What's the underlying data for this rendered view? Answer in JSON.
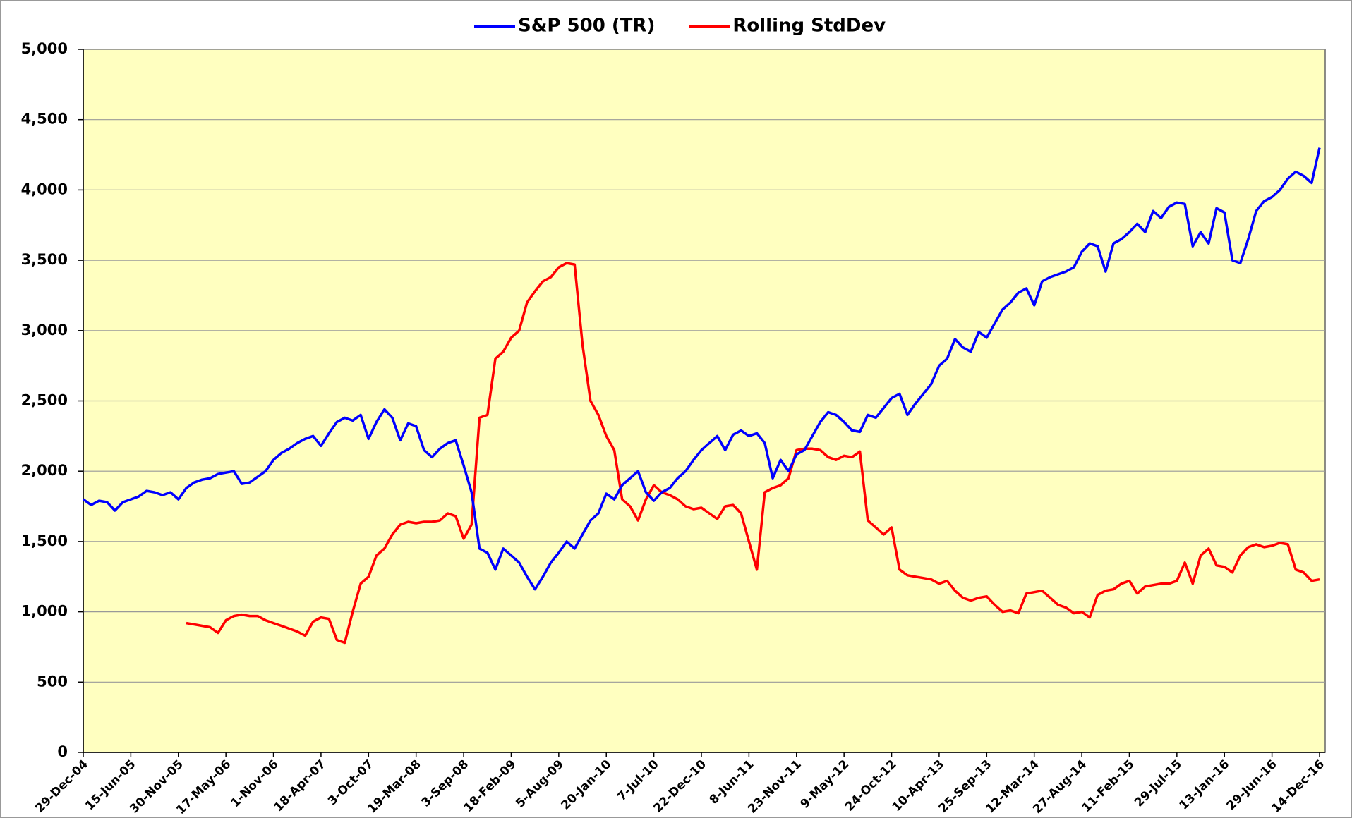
{
  "chart_data": {
    "type": "line",
    "legend": "top",
    "grid": true,
    "background": "#ffffc0",
    "categories": [
      "29-Dec-04",
      null,
      null,
      null,
      null,
      null,
      "15-Jun-05",
      null,
      null,
      null,
      null,
      null,
      "30-Nov-05",
      null,
      null,
      null,
      null,
      null,
      "17-May-06",
      null,
      null,
      null,
      null,
      null,
      "1-Nov-06",
      null,
      null,
      null,
      null,
      null,
      "18-Apr-07",
      null,
      null,
      null,
      null,
      null,
      "3-Oct-07",
      null,
      null,
      null,
      null,
      null,
      "19-Mar-08",
      null,
      null,
      null,
      null,
      null,
      "3-Sep-08",
      null,
      null,
      null,
      null,
      null,
      "18-Feb-09",
      null,
      null,
      null,
      null,
      null,
      "5-Aug-09",
      null,
      null,
      null,
      null,
      null,
      "20-Jan-10",
      null,
      null,
      null,
      null,
      null,
      "7-Jul-10",
      null,
      null,
      null,
      null,
      null,
      "22-Dec-10",
      null,
      null,
      null,
      null,
      null,
      "8-Jun-11",
      null,
      null,
      null,
      null,
      null,
      "23-Nov-11",
      null,
      null,
      null,
      null,
      null,
      "9-May-12",
      null,
      null,
      null,
      null,
      null,
      "24-Oct-12",
      null,
      null,
      null,
      null,
      null,
      "10-Apr-13",
      null,
      null,
      null,
      null,
      null,
      "25-Sep-13",
      null,
      null,
      null,
      null,
      null,
      "12-Mar-14",
      null,
      null,
      null,
      null,
      null,
      "27-Aug-14",
      null,
      null,
      null,
      null,
      null,
      "11-Feb-15",
      null,
      null,
      null,
      null,
      null,
      "29-Jul-15",
      null,
      null,
      null,
      null,
      null,
      "13-Jan-16",
      null,
      null,
      null,
      null,
      null,
      "29-Jun-16",
      null,
      null,
      null,
      null,
      null,
      "14-Dec-16"
    ],
    "series": [
      {
        "name": "S&P 500 (TR)",
        "color": "#0000ff",
        "values": [
          1800,
          1760,
          1790,
          1780,
          1720,
          1780,
          1800,
          1820,
          1860,
          1850,
          1830,
          1850,
          1800,
          1880,
          1920,
          1940,
          1950,
          1980,
          1990,
          2000,
          1910,
          1920,
          1960,
          2000,
          2080,
          2130,
          2160,
          2200,
          2230,
          2250,
          2180,
          2270,
          2350,
          2380,
          2360,
          2400,
          2230,
          2350,
          2440,
          2380,
          2220,
          2340,
          2320,
          2150,
          2100,
          2160,
          2200,
          2220,
          2040,
          1850,
          1450,
          1420,
          1300,
          1450,
          1400,
          1350,
          1250,
          1160,
          1250,
          1350,
          1420,
          1500,
          1450,
          1550,
          1650,
          1700,
          1840,
          1800,
          1900,
          1950,
          2000,
          1850,
          1790,
          1850,
          1880,
          1950,
          2000,
          2080,
          2150,
          2200,
          2250,
          2150,
          2260,
          2290,
          2250,
          2270,
          2200,
          1950,
          2080,
          2000,
          2120,
          2150,
          2250,
          2350,
          2420,
          2400,
          2350,
          2290,
          2280,
          2400,
          2380,
          2450,
          2520,
          2550,
          2400,
          2480,
          2550,
          2620,
          2750,
          2800,
          2940,
          2880,
          2850,
          2990,
          2950,
          3050,
          3150,
          3200,
          3270,
          3300,
          3180,
          3350,
          3380,
          3400,
          3420,
          3450,
          3560,
          3620,
          3600,
          3420,
          3620,
          3650,
          3700,
          3760,
          3700,
          3850,
          3800,
          3880,
          3910,
          3900,
          3600,
          3700,
          3620,
          3870,
          3840,
          3500,
          3480,
          3650,
          3850,
          3920,
          3950,
          4000,
          4080,
          4130,
          4100,
          4050,
          4300
        ]
      },
      {
        "name": "Rolling StdDev",
        "color": "#ff0000",
        "values": [
          null,
          null,
          null,
          null,
          null,
          null,
          null,
          null,
          null,
          null,
          null,
          null,
          null,
          920,
          910,
          900,
          890,
          850,
          940,
          970,
          980,
          970,
          970,
          940,
          920,
          900,
          880,
          860,
          830,
          930,
          960,
          950,
          800,
          780,
          1000,
          1200,
          1250,
          1400,
          1450,
          1550,
          1620,
          1640,
          1630,
          1640,
          1640,
          1650,
          1700,
          1680,
          1520,
          1620,
          2380,
          2400,
          2800,
          2850,
          2950,
          3000,
          3200,
          3280,
          3350,
          3380,
          3450,
          3480,
          3470,
          2900,
          2500,
          2400,
          2250,
          2150,
          1800,
          1750,
          1650,
          1800,
          1900,
          1850,
          1830,
          1800,
          1750,
          1730,
          1740,
          1700,
          1660,
          1750,
          1760,
          1700,
          1500,
          1300,
          1850,
          1880,
          1900,
          1950,
          2150,
          2160,
          2160,
          2150,
          2100,
          2080,
          2110,
          2100,
          2140,
          1650,
          1600,
          1550,
          1600,
          1300,
          1260,
          1250,
          1240,
          1230,
          1200,
          1220,
          1150,
          1100,
          1080,
          1100,
          1110,
          1050,
          1000,
          1010,
          990,
          1130,
          1140,
          1150,
          1100,
          1050,
          1030,
          990,
          1000,
          960,
          1120,
          1150,
          1160,
          1200,
          1220,
          1130,
          1180,
          1190,
          1200,
          1200,
          1220,
          1350,
          1200,
          1400,
          1450,
          1330,
          1320,
          1280,
          1400,
          1460,
          1480,
          1460,
          1470,
          1490,
          1480,
          1300,
          1280,
          1220,
          1230
        ]
      }
    ],
    "ylim": [
      0,
      5000
    ],
    "yticks": [
      0,
      500,
      {
        "value": 1000,
        "label": "1,000"
      },
      {
        "value": 1500,
        "label": "1,500"
      },
      {
        "value": 2000,
        "label": "2,000"
      },
      {
        "value": 2500,
        "label": "2,500"
      },
      {
        "value": 3000,
        "label": "3,000"
      },
      {
        "value": 3500,
        "label": "3,500"
      },
      {
        "value": 4000,
        "label": "4,000"
      },
      {
        "value": 4500,
        "label": "4,500"
      },
      {
        "value": 5000,
        "label": "5,000"
      }
    ]
  }
}
